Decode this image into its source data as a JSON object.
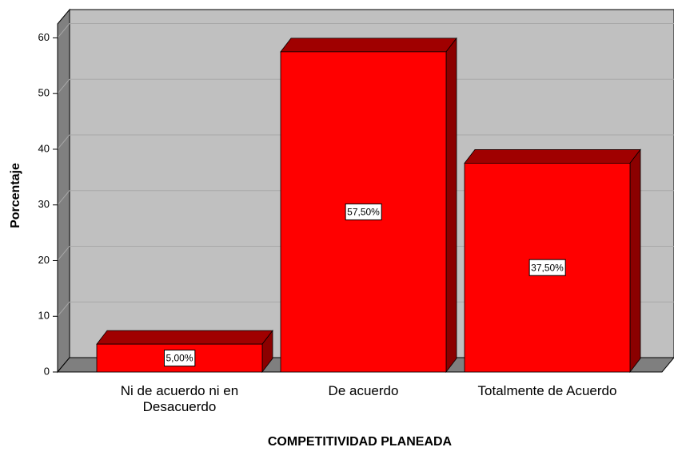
{
  "chart_data": {
    "type": "bar3d",
    "x_label": "COMPETITIVIDAD PLANEADA",
    "y_label": "Porcentaje",
    "categories": [
      "Ni de acuerdo ni en Desacuerdo",
      "De acuerdo",
      "Totalmente de Acuerdo"
    ],
    "values": [
      5,
      57.5,
      37.5
    ],
    "value_labels": [
      "5,00%",
      "57,50%",
      "37,50%"
    ],
    "color": "#ff0000",
    "ylim": [
      0,
      62.5
    ],
    "yticks": [
      0,
      10,
      20,
      30,
      40,
      50,
      60
    ],
    "grid": true
  }
}
